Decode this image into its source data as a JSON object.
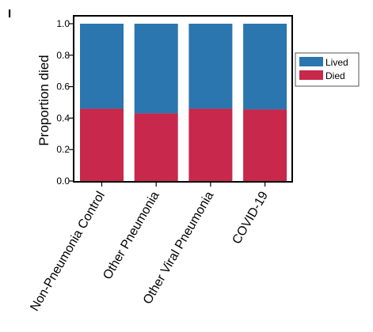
{
  "panel_label": "I",
  "colors": {
    "Lived": "#2b76ae",
    "Died": "#c8284b"
  },
  "chart_data": {
    "type": "bar",
    "stacked": true,
    "title": "",
    "xlabel": "",
    "ylabel": "Proportion died",
    "ylim": [
      0.0,
      1.0
    ],
    "yticks": [
      0.0,
      0.2,
      0.4,
      0.6,
      0.8,
      1.0
    ],
    "ytick_labels": [
      "0.0",
      "0.2",
      "0.4",
      "0.6",
      "0.8",
      "1.0"
    ],
    "categories": [
      "Non-Pneumonia Control",
      "Other Pneumonia",
      "Other Viral Pneumonia",
      "COVID-19"
    ],
    "series": [
      {
        "name": "Died",
        "values": [
          0.46,
          0.43,
          0.46,
          0.455
        ]
      },
      {
        "name": "Lived",
        "values": [
          0.54,
          0.57,
          0.54,
          0.545
        ]
      }
    ],
    "legend": {
      "position": "right",
      "entries": [
        "Lived",
        "Died"
      ]
    },
    "grid": false
  }
}
